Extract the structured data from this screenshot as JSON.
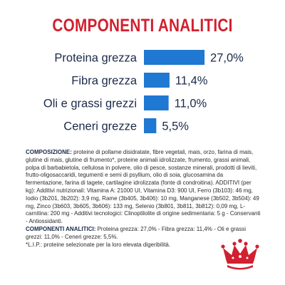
{
  "title": "COMPONENTI ANALITICI",
  "colors": {
    "title": "#d1202f",
    "bar": "#1f78d1",
    "label": "#1b2a4a"
  },
  "chart_data": {
    "type": "bar",
    "orientation": "horizontal",
    "categories": [
      "Proteina grezza",
      "Fibra grezza",
      "Oli e grassi grezzi",
      "Ceneri grezze"
    ],
    "values": [
      27.0,
      11.4,
      11.0,
      5.5
    ],
    "value_labels": [
      "27,0%",
      "11,4%",
      "11,0%",
      "5,5%"
    ],
    "grid": false
  },
  "composition": {
    "heading": "COMPOSIZIONE:",
    "text": " proteine di pollame disidratate, fibre vegetali, mais, orzo, farina di mais, glutine di mais, glutine di frumento*, proteine animali idrolizzate, frumento, grassi animali, polpa di barbabietola, cellulosa in polvere, olio di pesce, sostanze minerali, prodotti di lieviti, frutto-oligosaccaridi, tegumenti e semi di psyllium, olio di soia, glucosamina da fermentazione, farina di tagete, cartilagine idrolizzata (fonte di condroitina). ADDITIVI (per kg): Additivi nutrizionali: Vitamina A: 21000 UI, Vitamina D3: 900 UI, Ferro (3b103): 46 mg, Iodio (3b201, 3b202): 3,9 mg, Rame (3b405, 3b406): 10 mg, Manganese (3b502, 3b504): 49 mg, Zinco (3b603, 3b605, 3b606): 133 mg, Selenio (3b801, 3b811, 3b812): 0,09 mg, L-carnitina: 200 mg - Additivi tecnologici: Clinoptilolite di origine sedimentaria: 5 g - Conservanti - Antiossidanti.",
    "analytical_heading": "COMPONENTI ANALITICI:",
    "analytical_text": " Proteina grezza: 27,0% - Fibra grezza: 11,4% - Oli e grassi grezzi: 11,0% - Ceneri grezze: 5,5%.",
    "footnote": "*L.I.P.: proteine selezionate per la loro elevata digeribilità."
  },
  "logo": {
    "icon": "royal-canin-crown-icon"
  }
}
